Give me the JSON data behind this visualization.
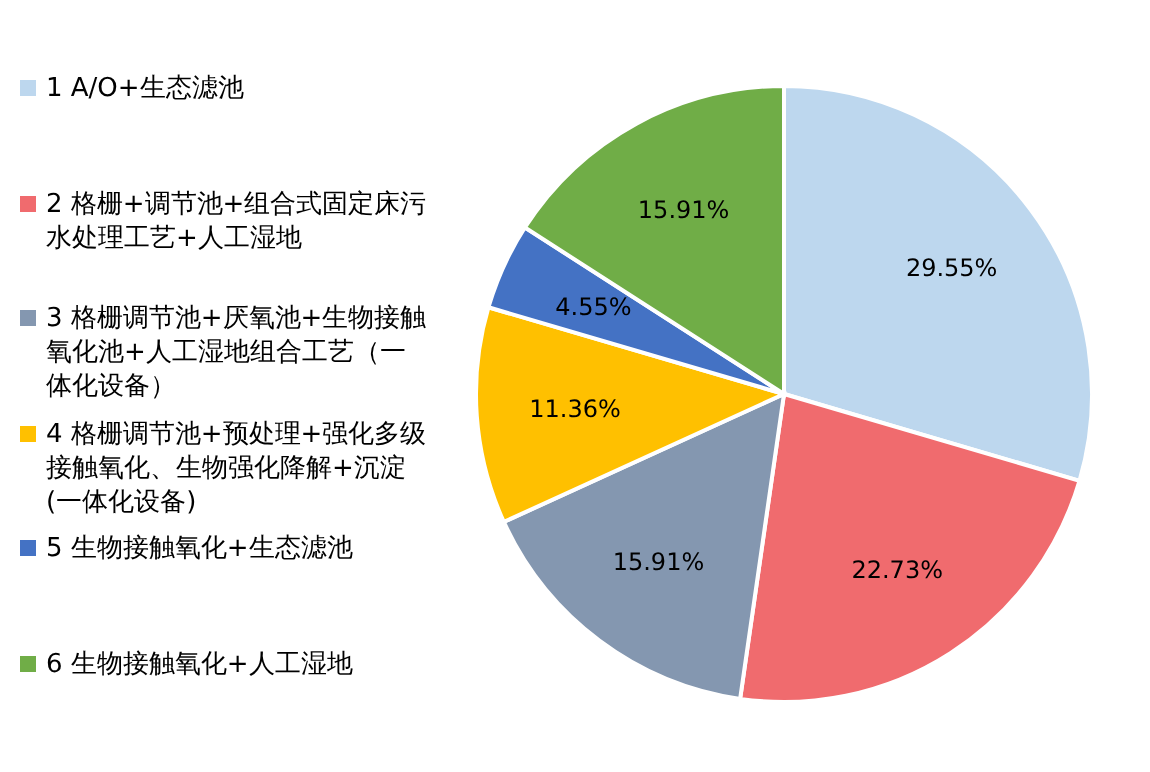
{
  "chart_data": {
    "type": "pie",
    "categories": [
      "1 A/O+生态滤池",
      "2 格栅+调节池+组合式固定床污水处理工艺+人工湿地",
      "3 格栅调节池+厌氧池+生物接触氧化池+人工湿地组合工艺（一体化设备）",
      "4 格栅调节池+预处理+强化多级接触氧化、生物强化降解+沉淀(一体化设备)",
      "5 生物接触氧化+生态滤池",
      "6 生物接触氧化+人工湿地"
    ],
    "values": [
      29.55,
      22.73,
      15.91,
      11.36,
      4.55,
      15.91
    ],
    "value_labels": [
      "29.55%",
      "22.73%",
      "15.91%",
      "11.36%",
      "4.55%",
      "15.91%"
    ],
    "colors": [
      "#bdd7ee",
      "#f06b6e",
      "#8497b0",
      "#ffc000",
      "#4472c4",
      "#70ad47"
    ],
    "legend": "left"
  }
}
